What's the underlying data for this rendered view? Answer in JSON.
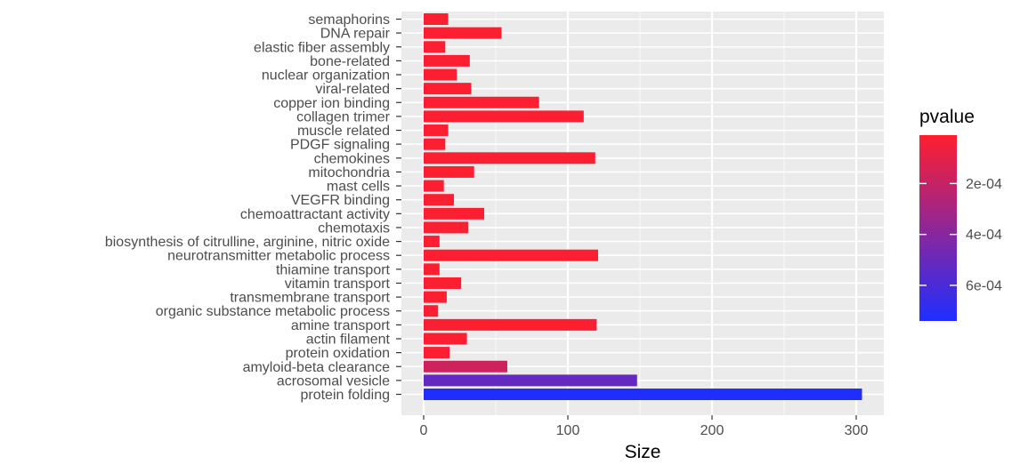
{
  "chart_data": {
    "type": "bar",
    "orientation": "horizontal",
    "xlabel": "Size",
    "ylabel": "",
    "xlim": [
      0,
      310
    ],
    "x_ticks": [
      0,
      100,
      200,
      300
    ],
    "grid": true,
    "legend": {
      "title": "pvalue",
      "placement": "right",
      "type": "colorbar",
      "low_color": "#ff1f2e",
      "high_color": "#1f2eff",
      "range": [
        1e-05,
        0.00074
      ],
      "ticks": [
        {
          "value": 0.0002,
          "label": "2e-04"
        },
        {
          "value": 0.0004,
          "label": "4e-04"
        },
        {
          "value": 0.0006,
          "label": "6e-04"
        }
      ]
    },
    "categories": [
      "semaphorins",
      "DNA repair",
      "elastic fiber assembly",
      "bone-related",
      "nuclear organization",
      "viral-related",
      "copper ion binding",
      "collagen trimer",
      "muscle related",
      "PDGF signaling",
      "chemokines",
      "mitochondria",
      "mast cells",
      "VEGFR binding",
      "chemoattractant activity",
      "chemotaxis",
      "biosynthesis of citrulline, arginine, nitric oxide",
      "neurotransmitter metabolic process",
      "thiamine transport",
      "vitamin transport",
      "transmembrane transport",
      "organic substance metabolic process",
      "amine transport",
      "actin filament",
      "protein oxidation",
      "amyloid-beta clearance",
      "acrosomal vesicle",
      "protein folding"
    ],
    "values": [
      17,
      54,
      15,
      32,
      23,
      33,
      80,
      111,
      17,
      15,
      119,
      35,
      14,
      21,
      42,
      31,
      11,
      121,
      11,
      26,
      16,
      10,
      120,
      30,
      18,
      58,
      148,
      304
    ],
    "pvalues": [
      2e-05,
      2e-05,
      2e-05,
      2e-05,
      2e-05,
      2e-05,
      2e-05,
      2e-05,
      2e-05,
      2e-05,
      2e-05,
      2e-05,
      2e-05,
      2e-05,
      2e-05,
      2e-05,
      2e-05,
      2e-05,
      2e-05,
      2e-05,
      2e-05,
      2e-05,
      2e-05,
      2e-05,
      2e-05,
      0.00017,
      0.00052,
      0.00074
    ]
  }
}
